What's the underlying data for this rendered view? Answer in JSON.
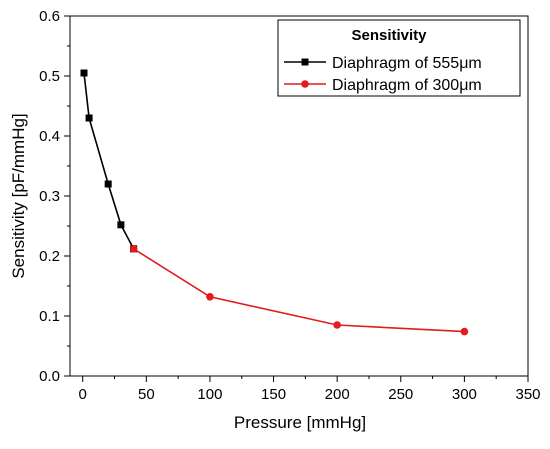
{
  "chart_data": {
    "type": "line",
    "xlabel": "Pressure [mmHg]",
    "ylabel": "Sensitivity [pF/mmHg]",
    "xlim": [
      -10,
      350
    ],
    "ylim": [
      0.0,
      0.6
    ],
    "x_ticks": [
      0,
      50,
      100,
      150,
      200,
      250,
      300,
      350
    ],
    "y_ticks": [
      0.0,
      0.1,
      0.2,
      0.3,
      0.4,
      0.5,
      0.6
    ],
    "x_tick_labels": [
      "0",
      "50",
      "100",
      "150",
      "200",
      "250",
      "300",
      "350"
    ],
    "y_tick_labels": [
      "0.0",
      "0.1",
      "0.2",
      "0.3",
      "0.4",
      "0.5",
      "0.6"
    ],
    "grid": false,
    "legend": {
      "title": "Sensitivity",
      "position": "top-right"
    },
    "series": [
      {
        "name": "Diaphragm of 555μm",
        "color": "#000000",
        "marker": "square",
        "x": [
          1,
          5,
          20,
          30,
          40
        ],
        "y": [
          0.505,
          0.43,
          0.32,
          0.252,
          0.212
        ]
      },
      {
        "name": "Diaphragm of 300μm",
        "color": "#e41a1c",
        "marker": "circle",
        "x": [
          40,
          100,
          200,
          300
        ],
        "y": [
          0.212,
          0.132,
          0.085,
          0.074
        ]
      }
    ]
  }
}
